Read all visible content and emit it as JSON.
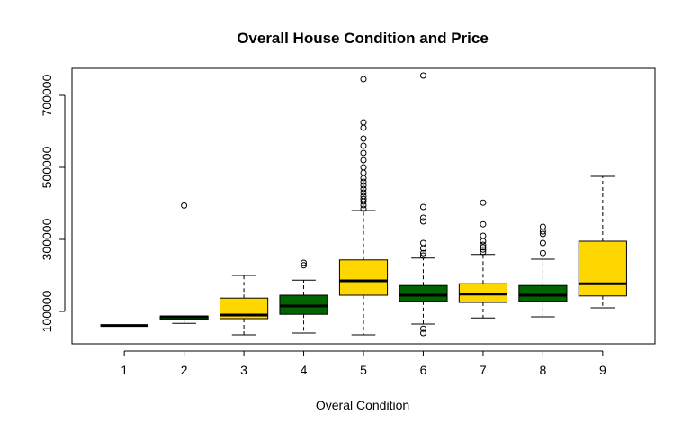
{
  "chart_data": {
    "type": "boxplot",
    "title": "Overall House Condition and Price",
    "xlabel": "Overal Condition",
    "ylabel": "",
    "categories": [
      "1",
      "2",
      "3",
      "4",
      "5",
      "6",
      "7",
      "8",
      "9"
    ],
    "y_ticks": [
      100000,
      300000,
      500000,
      700000
    ],
    "ylim": [
      10000,
      775000
    ],
    "colors": [
      "#FFD700",
      "#006400"
    ],
    "boxes": [
      {
        "category": "1",
        "color": "#FFD700",
        "whisker_low": 61000,
        "q1": 61000,
        "median": 61000,
        "q3": 61000,
        "whisker_high": 61000,
        "outliers": []
      },
      {
        "category": "2",
        "color": "#006400",
        "whisker_low": 67000,
        "q1": 78000,
        "median": 85000,
        "q3": 87000,
        "whisker_high": 87000,
        "outliers": [
          394000
        ]
      },
      {
        "category": "3",
        "color": "#FFD700",
        "whisker_low": 35000,
        "q1": 80000,
        "median": 90000,
        "q3": 137000,
        "whisker_high": 200000,
        "outliers": []
      },
      {
        "category": "4",
        "color": "#006400",
        "whisker_low": 40000,
        "q1": 92000,
        "median": 115000,
        "q3": 145000,
        "whisker_high": 187000,
        "outliers": [
          228000,
          235000
        ]
      },
      {
        "category": "5",
        "color": "#FFD700",
        "whisker_low": 35000,
        "q1": 145000,
        "median": 185000,
        "q3": 243000,
        "whisker_high": 380000,
        "outliers": [
          385000,
          395000,
          405000,
          412000,
          420000,
          430000,
          440000,
          450000,
          460000,
          470000,
          485000,
          500000,
          520000,
          540000,
          560000,
          580000,
          610000,
          625000,
          745000
        ]
      },
      {
        "category": "6",
        "color": "#006400",
        "whisker_low": 65000,
        "q1": 128000,
        "median": 145000,
        "q3": 172000,
        "whisker_high": 248000,
        "outliers": [
          40000,
          52000,
          255000,
          262000,
          275000,
          290000,
          350000,
          360000,
          390000,
          755000
        ]
      },
      {
        "category": "7",
        "color": "#FFD700",
        "whisker_low": 82000,
        "q1": 125000,
        "median": 148000,
        "q3": 177000,
        "whisker_high": 258000,
        "outliers": [
          265000,
          272000,
          278000,
          285000,
          295000,
          310000,
          342000,
          402000
        ]
      },
      {
        "category": "8",
        "color": "#006400",
        "whisker_low": 85000,
        "q1": 128000,
        "median": 145000,
        "q3": 172000,
        "whisker_high": 245000,
        "outliers": [
          262000,
          290000,
          315000,
          322000,
          335000
        ]
      },
      {
        "category": "9",
        "color": "#FFD700",
        "whisker_low": 110000,
        "q1": 143000,
        "median": 177000,
        "q3": 295000,
        "whisker_high": 475000,
        "outliers": []
      }
    ]
  }
}
